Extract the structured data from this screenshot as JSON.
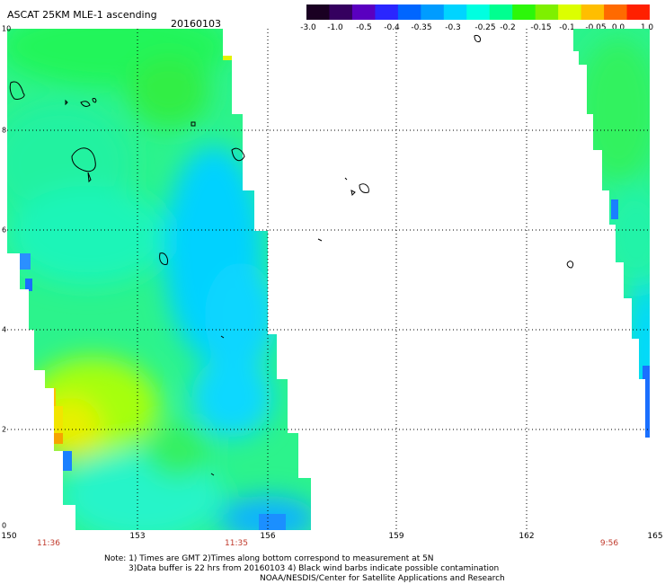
{
  "header": {
    "title": "ASCAT 25KM MLE-1 ascending",
    "date": "20160103"
  },
  "colorbar": {
    "labels": [
      "-3.0",
      "-1.0",
      "-0.5",
      "-0.4",
      "-0.35",
      "-0.3",
      "-0.25",
      "-0.2",
      "-0.15",
      "-0.1",
      "-0.05",
      "0.0",
      "1.0"
    ],
    "colors": [
      "#1a0022",
      "#35005f",
      "#5a00c0",
      "#2a26ff",
      "#0066ff",
      "#009cff",
      "#00d4ff",
      "#00ffe0",
      "#00ff90",
      "#2cf70a",
      "#7ef000",
      "#dcff00",
      "#ffbe00",
      "#ff6a00",
      "#ff2000"
    ]
  },
  "axes": {
    "y_ticks": [
      "10",
      "8",
      "6",
      "4",
      "2",
      "0"
    ],
    "x_ticks": [
      "150",
      "153",
      "156",
      "159",
      "162",
      "165"
    ]
  },
  "times": [
    "11:36",
    "11:35",
    "9:56"
  ],
  "notes": {
    "line1": "Note: 1) Times are GMT 2)Times along bottom correspond to measurement at 5N",
    "line2": "3)Data buffer is 22 hrs from 20160103 4) Black wind barbs indicate possible contamination",
    "line3": "NOAA/NESDIS/Center for Satellite Applications and Research"
  }
}
